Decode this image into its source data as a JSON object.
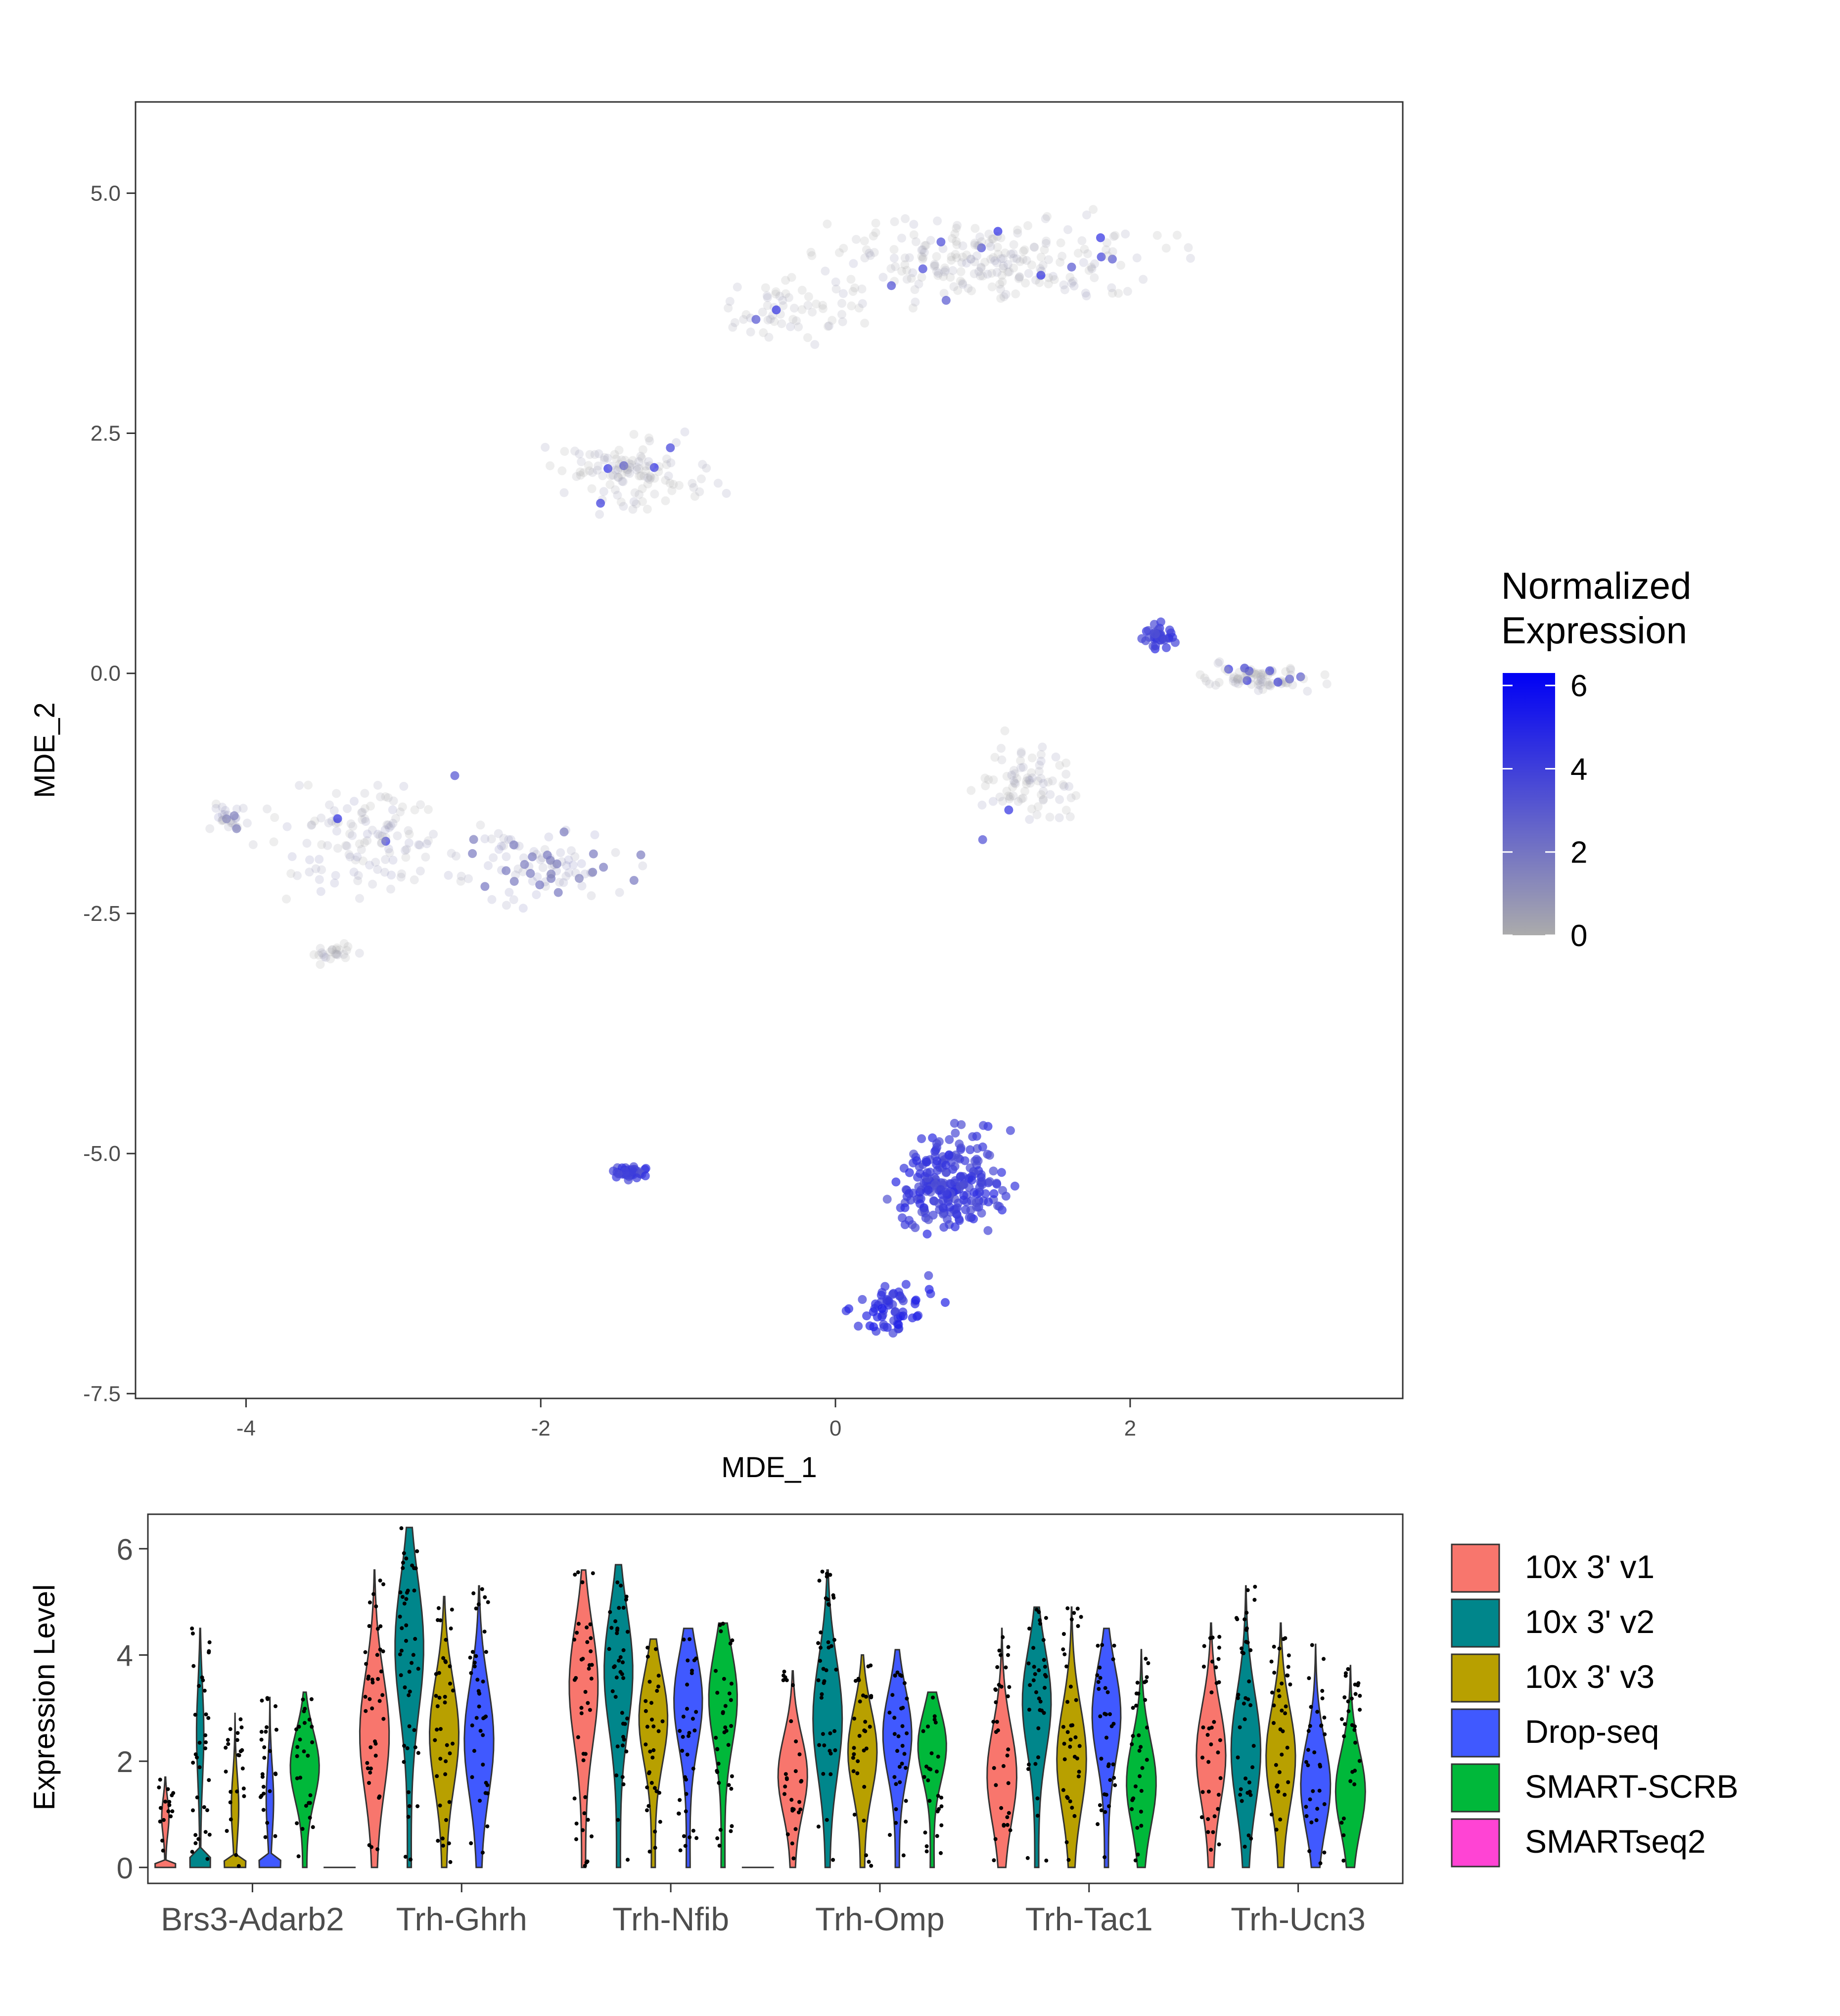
{
  "chart_data": [
    {
      "type": "scatter",
      "title": "",
      "xlabel": "MDE_1",
      "ylabel": "MDE_2",
      "xlim": [
        -4.75,
        3.85
      ],
      "ylim": [
        -7.55,
        5.95
      ],
      "xticks": [
        -4,
        -2,
        0,
        2
      ],
      "xtick_labels": [
        "-4",
        "-2",
        "0",
        "2"
      ],
      "yticks": [
        5.0,
        2.5,
        0.0,
        -2.5,
        -5.0,
        -7.5
      ],
      "ytick_labels": [
        "5.0",
        "2.5",
        "0.0",
        "-2.5",
        "-5.0",
        "-7.5"
      ],
      "grid": false,
      "legend": {
        "title_lines": [
          "Normalized",
          "Expression"
        ],
        "position": "right",
        "min": 0,
        "max": 6.3,
        "ticks": [
          6,
          4,
          2,
          0
        ],
        "tick_labels": [
          "6",
          "4",
          "2",
          "0"
        ],
        "colors": [
          "#ababab",
          "#0000f5"
        ]
      },
      "clusters": [
        {
          "cx": 1.0,
          "cy": 4.3,
          "sx": 1.2,
          "sy": 0.45,
          "n": 240,
          "expr": 0.2
        },
        {
          "cx": -0.3,
          "cy": 3.8,
          "sx": 0.5,
          "sy": 0.3,
          "n": 60,
          "expr": 0.2
        },
        {
          "cx": -1.4,
          "cy": 2.1,
          "sx": 0.5,
          "sy": 0.35,
          "n": 120,
          "expr": 0.2
        },
        {
          "cx": -3.2,
          "cy": -1.7,
          "sx": 0.65,
          "sy": 0.6,
          "n": 130,
          "expr": 0.6
        },
        {
          "cx": -2.0,
          "cy": -2.0,
          "sx": 0.5,
          "sy": 0.35,
          "n": 90,
          "expr": 1.2
        },
        {
          "cx": -4.1,
          "cy": -1.5,
          "sx": 0.15,
          "sy": 0.15,
          "n": 25,
          "expr": 0.8
        },
        {
          "cx": -3.4,
          "cy": -2.9,
          "sx": 0.15,
          "sy": 0.1,
          "n": 25,
          "expr": 0.3
        },
        {
          "cx": 2.85,
          "cy": -0.05,
          "sx": 0.35,
          "sy": 0.12,
          "n": 80,
          "expr": 0.2
        },
        {
          "cx": 1.3,
          "cy": -1.2,
          "sx": 0.35,
          "sy": 0.4,
          "n": 80,
          "expr": 0.3
        },
        {
          "cx": 2.2,
          "cy": 0.4,
          "sx": 0.12,
          "sy": 0.12,
          "n": 35,
          "expr": 4.0
        },
        {
          "cx": -1.4,
          "cy": -5.2,
          "sx": 0.12,
          "sy": 0.06,
          "n": 40,
          "expr": 3.8
        },
        {
          "cx": 0.75,
          "cy": -5.3,
          "sx": 0.35,
          "sy": 0.5,
          "n": 230,
          "expr": 4.0
        },
        {
          "cx": 0.4,
          "cy": -6.6,
          "sx": 0.25,
          "sy": 0.25,
          "n": 60,
          "expr": 4.6
        }
      ]
    },
    {
      "type": "violin",
      "title": "",
      "xlabel": "",
      "ylabel": "Expression Level",
      "ylim": [
        -0.3,
        6.65
      ],
      "yticks": [
        0,
        2,
        4,
        6
      ],
      "ytick_labels": [
        "0",
        "2",
        "4",
        "6"
      ],
      "grid": false,
      "categories": [
        "Brs3-Adarb2",
        "Trh-Ghrh",
        "Trh-Nfib",
        "Trh-Omp",
        "Trh-Tac1",
        "Trh-Ucn3"
      ],
      "series": [
        {
          "name": "10x 3' v1",
          "color": "#f8766d"
        },
        {
          "name": "10x 3' v2",
          "color": "#00868b"
        },
        {
          "name": "10x 3' v3",
          "color": "#b8a000"
        },
        {
          "name": "Drop-seq",
          "color": "#4059ff"
        },
        {
          "name": "SMART-SCRB",
          "color": "#00b83a"
        },
        {
          "name": "SMARTseq2",
          "color": "#ff44d4"
        }
      ],
      "max_values": [
        [
          1.7,
          4.5,
          2.9,
          3.2,
          3.3,
          0.0
        ],
        [
          5.6,
          6.4,
          5.1,
          5.3,
          null,
          null
        ],
        [
          5.6,
          5.7,
          4.3,
          4.5,
          4.6,
          0.0
        ],
        [
          3.7,
          5.6,
          4.0,
          4.1,
          3.3,
          null
        ],
        [
          4.5,
          4.9,
          4.9,
          4.5,
          4.1,
          null
        ],
        [
          4.6,
          5.3,
          4.6,
          4.2,
          3.8,
          null
        ]
      ],
      "legend_position": "right"
    }
  ]
}
